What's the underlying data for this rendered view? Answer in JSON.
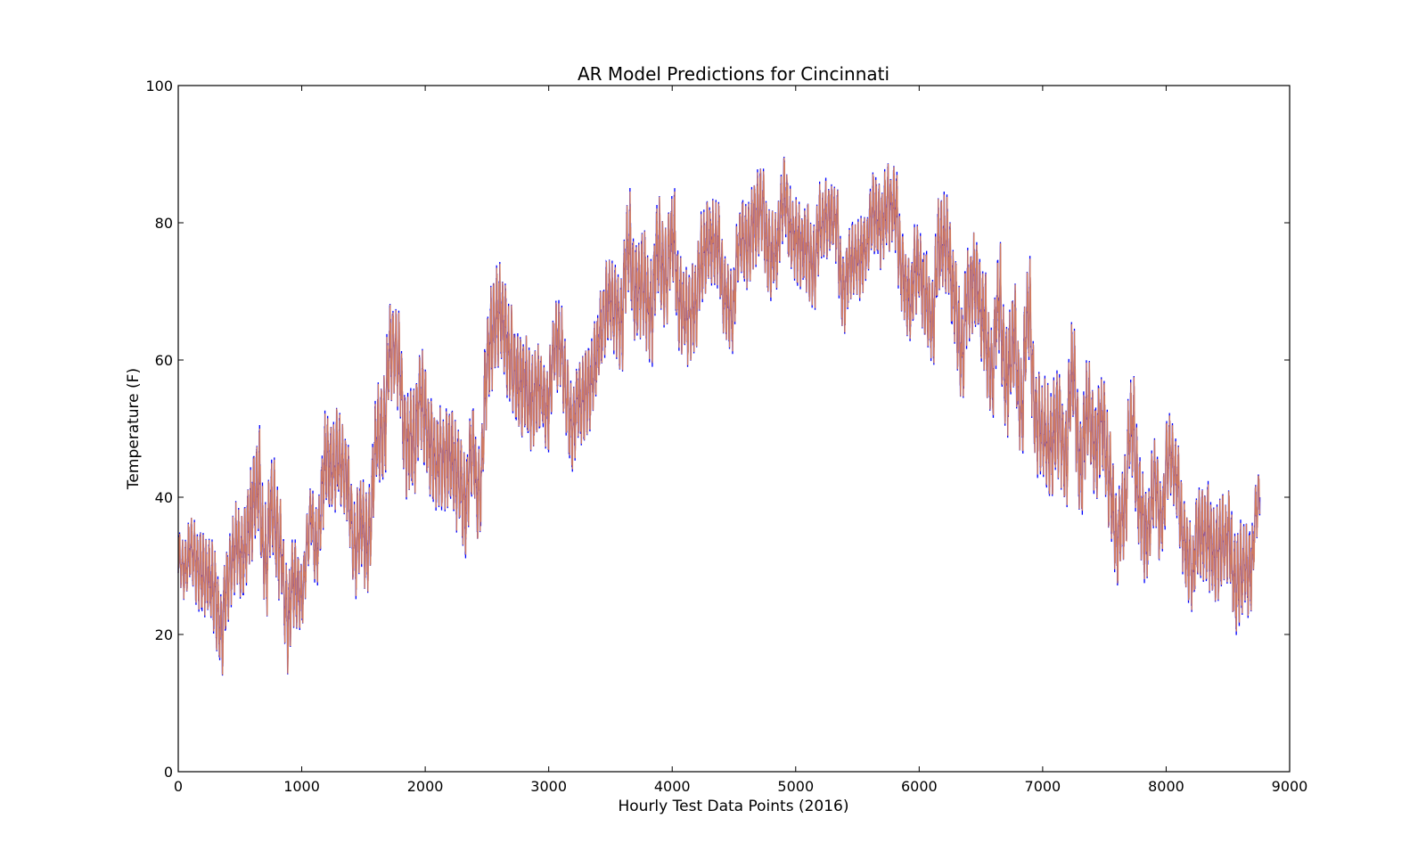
{
  "chart_data": {
    "type": "line",
    "title": "AR Model Predictions for Cincinnati",
    "xlabel": "Hourly Test Data Points (2016)",
    "ylabel": "Temperature (F)",
    "xlim": [
      0,
      9000
    ],
    "ylim": [
      0,
      100
    ],
    "xticks": [
      0,
      1000,
      2000,
      3000,
      4000,
      5000,
      6000,
      7000,
      8000,
      9000
    ],
    "yticks": [
      0,
      20,
      40,
      60,
      80,
      100
    ],
    "grid": false,
    "legend": "none",
    "n_points": 8760,
    "series": [
      {
        "role": "actual",
        "color": "#0000ff",
        "trend_x": [
          0,
          100,
          200,
          300,
          400,
          500,
          700,
          900,
          1000,
          1100,
          1200,
          1300,
          1400,
          1500,
          1600,
          1700,
          1800,
          1900,
          2000,
          2100,
          2200,
          2300,
          2400,
          2500,
          2600,
          2700,
          2800,
          2900,
          3000,
          3100,
          3200,
          3300,
          3400,
          3500,
          3700,
          3900,
          4100,
          4300,
          4500,
          4700,
          4900,
          5100,
          5300,
          5500,
          5700,
          5900,
          6100,
          6300,
          6500,
          6700,
          6900,
          7100,
          7300,
          7500,
          7600,
          7700,
          7800,
          7900,
          8000,
          8100,
          8200,
          8300,
          8400,
          8500,
          8600,
          8700,
          8760
        ],
        "trend_y": [
          32,
          30,
          27,
          25,
          22,
          28,
          38,
          30,
          22,
          35,
          45,
          40,
          38,
          35,
          50,
          55,
          52,
          48,
          50,
          48,
          45,
          42,
          40,
          55,
          62,
          58,
          60,
          58,
          55,
          60,
          45,
          55,
          62,
          72,
          70,
          72,
          74,
          72,
          74,
          76,
          78,
          76,
          75,
          73,
          76,
          74,
          72,
          70,
          62,
          62,
          60,
          55,
          50,
          45,
          40,
          45,
          38,
          40,
          42,
          38,
          35,
          28,
          26,
          30,
          35,
          36,
          40
        ],
        "amplitude": [
          6,
          8,
          10,
          10,
          9,
          10,
          12,
          12,
          8,
          9,
          12,
          11,
          10,
          11,
          12,
          12,
          12,
          12,
          12,
          12,
          12,
          12,
          11,
          12,
          12,
          12,
          12,
          10,
          10,
          11,
          10,
          10,
          10,
          10,
          12,
          12,
          11,
          10,
          10,
          10,
          10,
          10,
          9,
          9,
          10,
          10,
          11,
          11,
          11,
          12,
          12,
          12,
          12,
          12,
          11,
          12,
          12,
          10,
          10,
          9,
          10,
          11,
          12,
          12,
          12,
          10,
          6
        ],
        "last_value": 40
      },
      {
        "role": "predicted",
        "color": "#f28e46",
        "description_lag": 1
      }
    ]
  }
}
